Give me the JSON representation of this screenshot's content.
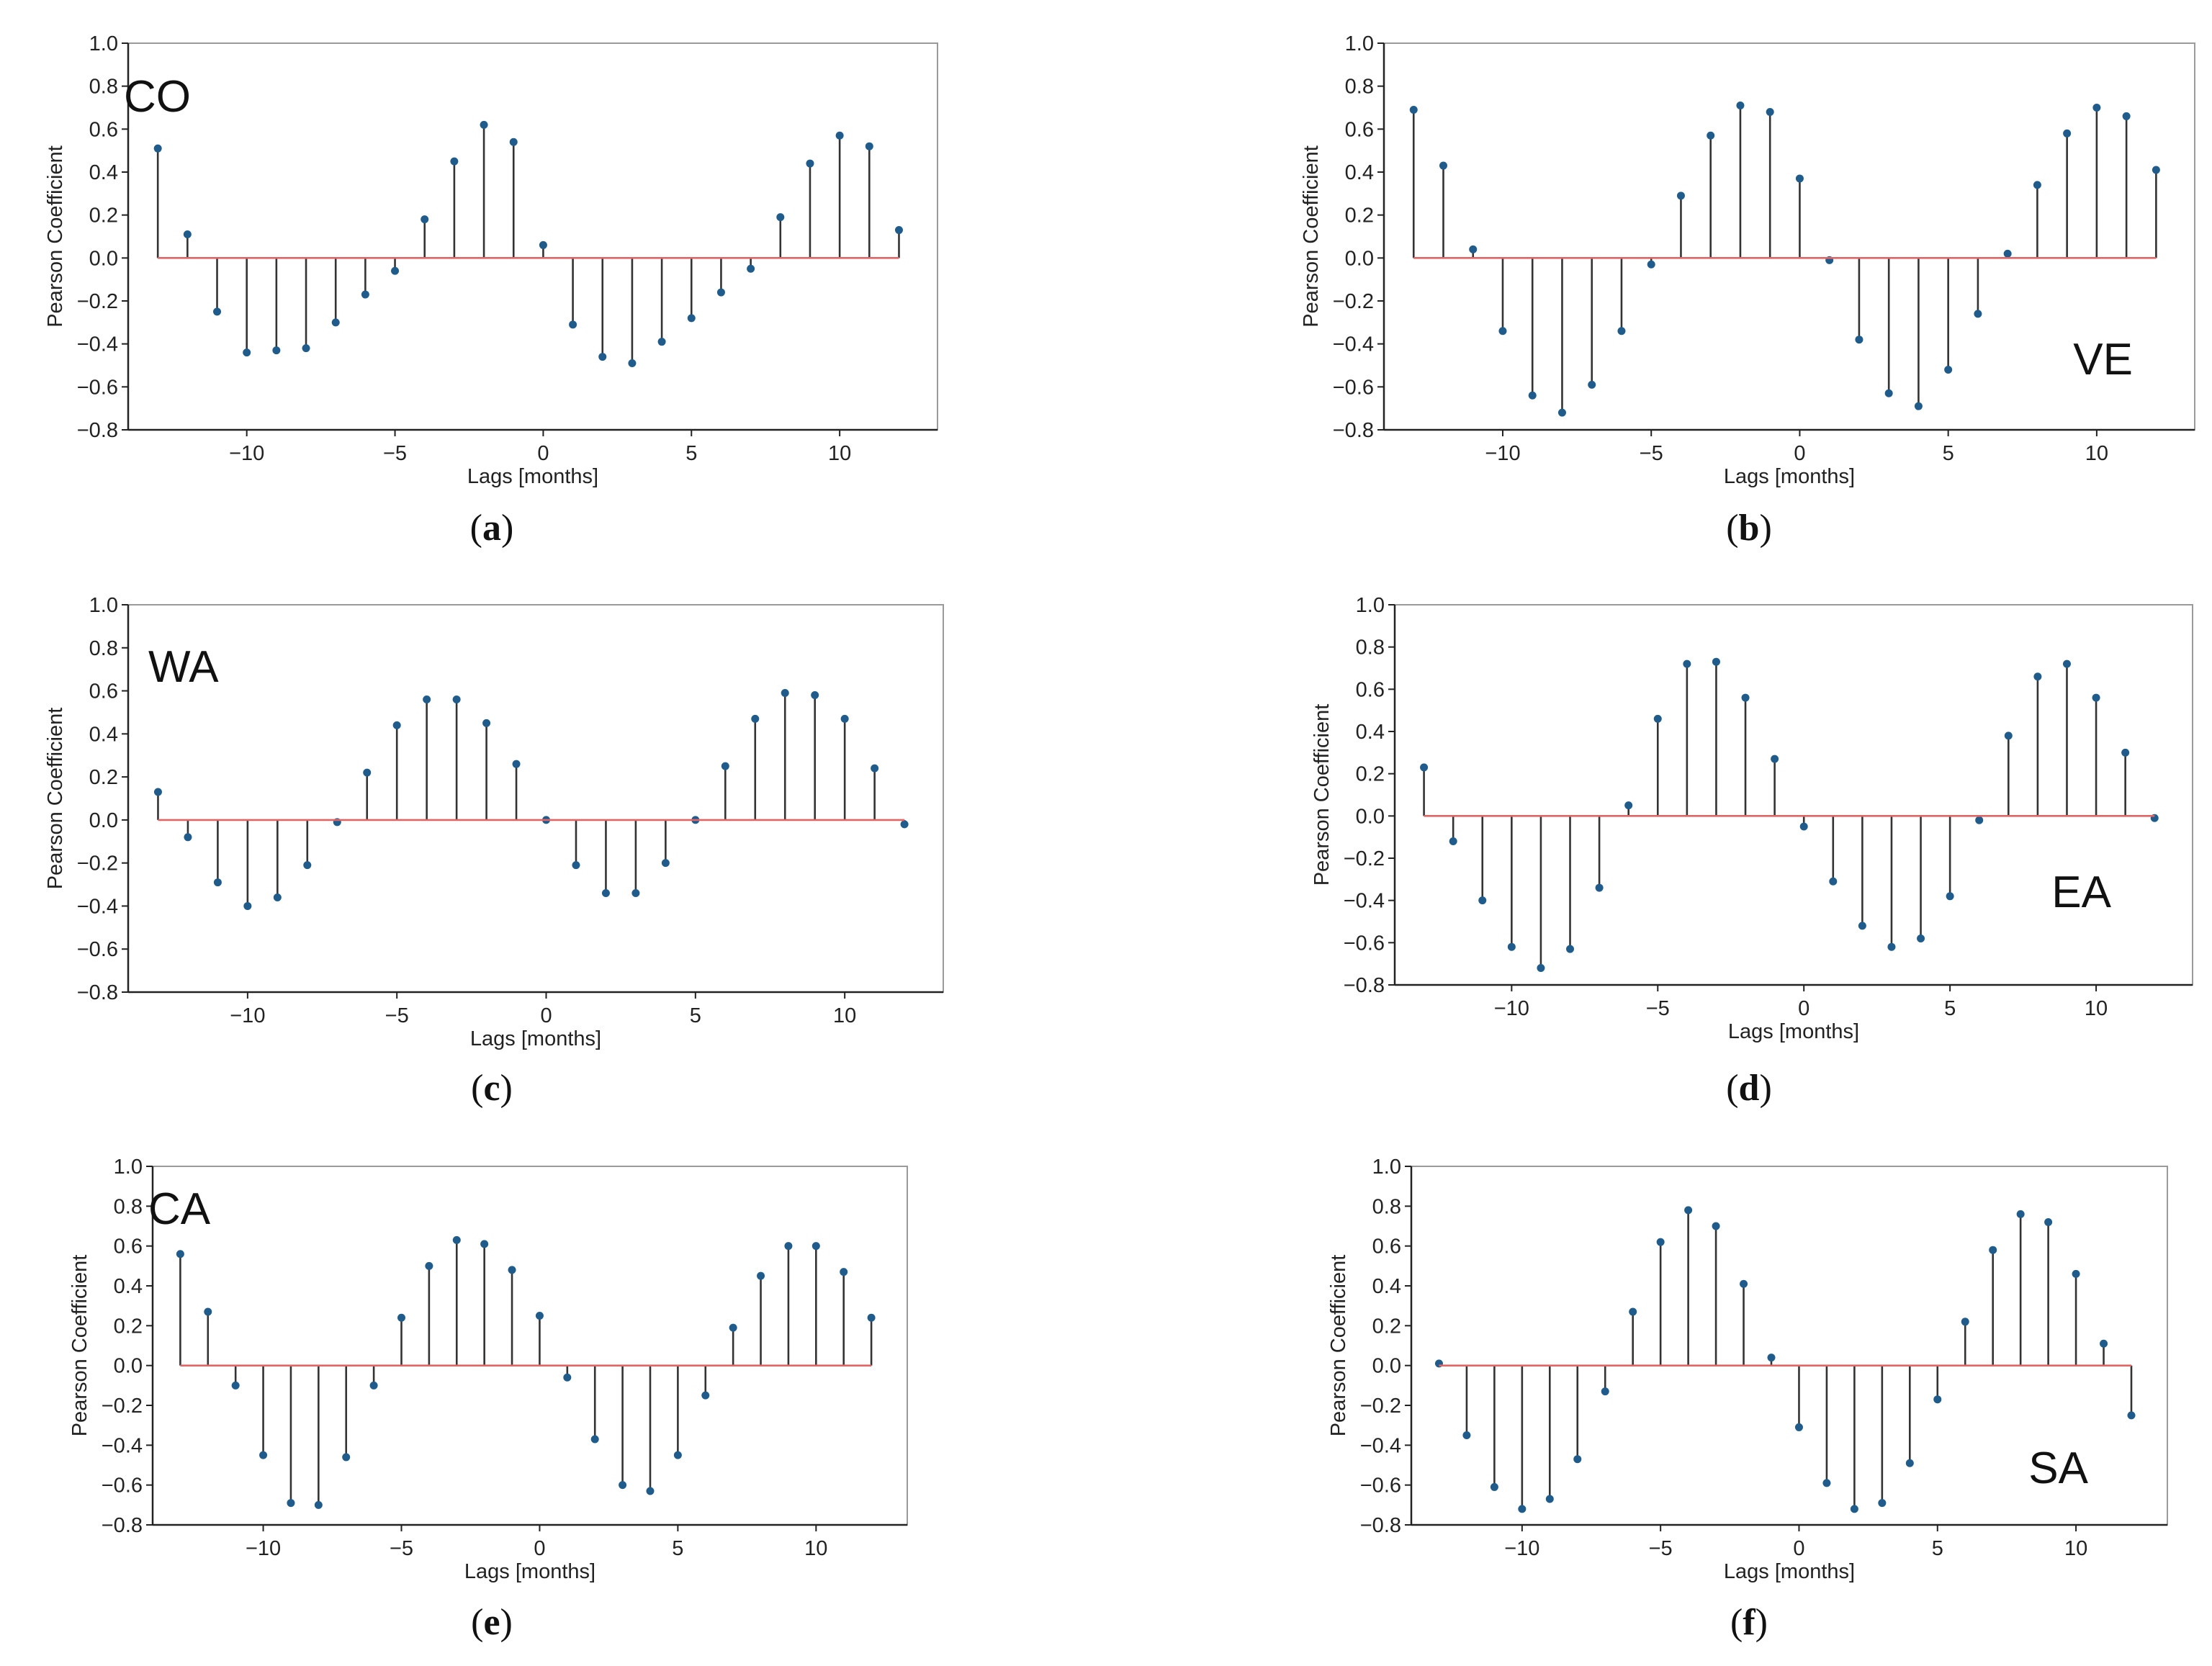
{
  "figure": {
    "panels": [
      {
        "letter": "a",
        "caption_open": "(",
        "caption_close": ")"
      },
      {
        "letter": "b",
        "caption_open": "(",
        "caption_close": ")"
      },
      {
        "letter": "c",
        "caption_open": "(",
        "caption_close": ")"
      },
      {
        "letter": "d",
        "caption_open": "(",
        "caption_close": ")"
      },
      {
        "letter": "e",
        "caption_open": "(",
        "caption_close": ")"
      },
      {
        "letter": "f",
        "caption_open": "(",
        "caption_close": ")"
      }
    ]
  },
  "colors": {
    "stem": "#333333",
    "marker": "#1f5c8c",
    "baseline": "#e06666",
    "axis": "#222222"
  },
  "chart_data": [
    {
      "type": "stem",
      "region_label": "CO",
      "xlabel": "Lags [months]",
      "ylabel": "Pearson Coefficient",
      "xlim": [
        -14,
        13.3
      ],
      "ylim": [
        -0.8,
        1.0
      ],
      "xticks": [
        -10,
        -5,
        0,
        5,
        10
      ],
      "xtick_labels": [
        "−10",
        "−5",
        "0",
        "5",
        "10"
      ],
      "yticks": [
        -0.8,
        -0.6,
        -0.4,
        -0.2,
        0.0,
        0.2,
        0.4,
        0.6,
        0.8,
        1.0
      ],
      "ytick_labels": [
        "−0.8",
        "−0.6",
        "−0.4",
        "−0.2",
        "0.0",
        "0.2",
        "0.4",
        "0.6",
        "0.8",
        "1.0"
      ],
      "x": [
        -13,
        -12,
        -11,
        -10,
        -9,
        -8,
        -7,
        -6,
        -5,
        -4,
        -3,
        -2,
        -1,
        0,
        1,
        2,
        3,
        4,
        5,
        6,
        7,
        8,
        9,
        10,
        11,
        12
      ],
      "values": [
        0.51,
        0.11,
        -0.25,
        -0.44,
        -0.43,
        -0.42,
        -0.3,
        -0.17,
        -0.06,
        0.18,
        0.45,
        0.62,
        0.54,
        0.06,
        -0.31,
        -0.46,
        -0.49,
        -0.39,
        -0.28,
        -0.16,
        -0.05,
        0.19,
        0.44,
        0.57,
        0.52,
        0.13
      ]
    },
    {
      "type": "stem",
      "region_label": "VE",
      "xlabel": "Lags [months]",
      "ylabel": "Pearson Coefficient",
      "xlim": [
        -14,
        13.3
      ],
      "ylim": [
        -0.8,
        1.0
      ],
      "xticks": [
        -10,
        -5,
        0,
        5,
        10
      ],
      "xtick_labels": [
        "−10",
        "−5",
        "0",
        "5",
        "10"
      ],
      "yticks": [
        -0.8,
        -0.6,
        -0.4,
        -0.2,
        0.0,
        0.2,
        0.4,
        0.6,
        0.8,
        1.0
      ],
      "ytick_labels": [
        "−0.8",
        "−0.6",
        "−0.4",
        "−0.2",
        "0.0",
        "0.2",
        "0.4",
        "0.6",
        "0.8",
        "1.0"
      ],
      "x": [
        -13,
        -12,
        -11,
        -10,
        -9,
        -8,
        -7,
        -6,
        -5,
        -4,
        -3,
        -2,
        -1,
        0,
        1,
        2,
        3,
        4,
        5,
        6,
        7,
        8,
        9,
        10,
        11,
        12
      ],
      "values": [
        0.69,
        0.43,
        0.04,
        -0.34,
        -0.64,
        -0.72,
        -0.59,
        -0.34,
        -0.03,
        0.29,
        0.57,
        0.71,
        0.68,
        0.37,
        -0.01,
        -0.38,
        -0.63,
        -0.69,
        -0.52,
        -0.26,
        0.02,
        0.34,
        0.58,
        0.7,
        0.66,
        0.41
      ]
    },
    {
      "type": "stem",
      "region_label": "WA",
      "xlabel": "Lags [months]",
      "ylabel": "Pearson Coefficient",
      "xlim": [
        -14,
        13.3
      ],
      "ylim": [
        -0.8,
        1.0
      ],
      "xticks": [
        -10,
        -5,
        0,
        5,
        10
      ],
      "xtick_labels": [
        "−10",
        "−5",
        "0",
        "5",
        "10"
      ],
      "yticks": [
        -0.8,
        -0.6,
        -0.4,
        -0.2,
        0.0,
        0.2,
        0.4,
        0.6,
        0.8,
        1.0
      ],
      "ytick_labels": [
        "−0.8",
        "−0.6",
        "−0.4",
        "−0.2",
        "0.0",
        "0.2",
        "0.4",
        "0.6",
        "0.8",
        "1.0"
      ],
      "x": [
        -13,
        -12,
        -11,
        -10,
        -9,
        -8,
        -7,
        -6,
        -5,
        -4,
        -3,
        -2,
        -1,
        0,
        1,
        2,
        3,
        4,
        5,
        6,
        7,
        8,
        9,
        10,
        11,
        12
      ],
      "values": [
        0.13,
        -0.08,
        -0.29,
        -0.4,
        -0.36,
        -0.21,
        -0.01,
        0.22,
        0.44,
        0.56,
        0.56,
        0.45,
        0.26,
        0.0,
        -0.21,
        -0.34,
        -0.34,
        -0.2,
        0.0,
        0.25,
        0.47,
        0.59,
        0.58,
        0.47,
        0.24,
        -0.02
      ]
    },
    {
      "type": "stem",
      "region_label": "EA",
      "xlabel": "Lags [months]",
      "ylabel": "Pearson Coefficient",
      "xlim": [
        -14,
        13.3
      ],
      "ylim": [
        -0.8,
        1.0
      ],
      "xticks": [
        -10,
        -5,
        0,
        5,
        10
      ],
      "xtick_labels": [
        "−10",
        "−5",
        "0",
        "5",
        "10"
      ],
      "yticks": [
        -0.8,
        -0.6,
        -0.4,
        -0.2,
        0.0,
        0.2,
        0.4,
        0.6,
        0.8,
        1.0
      ],
      "ytick_labels": [
        "−0.8",
        "−0.6",
        "−0.4",
        "−0.2",
        "0.0",
        "0.2",
        "0.4",
        "0.6",
        "0.8",
        "1.0"
      ],
      "x": [
        -13,
        -12,
        -11,
        -10,
        -9,
        -8,
        -7,
        -6,
        -5,
        -4,
        -3,
        -2,
        -1,
        0,
        1,
        2,
        3,
        4,
        5,
        6,
        7,
        8,
        9,
        10,
        11,
        12
      ],
      "values": [
        0.23,
        -0.12,
        -0.4,
        -0.62,
        -0.72,
        -0.63,
        -0.34,
        0.05,
        0.46,
        0.72,
        0.73,
        0.56,
        0.27,
        -0.05,
        -0.31,
        -0.52,
        -0.62,
        -0.58,
        -0.38,
        -0.02,
        0.38,
        0.66,
        0.72,
        0.56,
        0.3,
        -0.01
      ]
    },
    {
      "type": "stem",
      "region_label": "CA",
      "xlabel": "Lags [months]",
      "ylabel": "Pearson Coefficient",
      "xlim": [
        -14,
        13.3
      ],
      "ylim": [
        -0.8,
        1.0
      ],
      "xticks": [
        -10,
        -5,
        0,
        5,
        10
      ],
      "xtick_labels": [
        "−10",
        "−5",
        "0",
        "5",
        "10"
      ],
      "yticks": [
        -0.8,
        -0.6,
        -0.4,
        -0.2,
        0.0,
        0.2,
        0.4,
        0.6,
        0.8,
        1.0
      ],
      "ytick_labels": [
        "−0.8",
        "−0.6",
        "−0.4",
        "−0.2",
        "0.0",
        "0.2",
        "0.4",
        "0.6",
        "0.8",
        "1.0"
      ],
      "x": [
        -13,
        -12,
        -11,
        -10,
        -9,
        -8,
        -7,
        -6,
        -5,
        -4,
        -3,
        -2,
        -1,
        0,
        1,
        2,
        3,
        4,
        5,
        6,
        7,
        8,
        9,
        10,
        11,
        12
      ],
      "values": [
        0.56,
        0.27,
        -0.1,
        -0.45,
        -0.69,
        -0.7,
        -0.46,
        -0.1,
        0.24,
        0.5,
        0.63,
        0.61,
        0.48,
        0.25,
        -0.06,
        -0.37,
        -0.6,
        -0.63,
        -0.45,
        -0.15,
        0.19,
        0.45,
        0.6,
        0.6,
        0.47,
        0.24
      ]
    },
    {
      "type": "stem",
      "region_label": "SA",
      "xlabel": "Lags [months]",
      "ylabel": "Pearson Coefficient",
      "xlim": [
        -14,
        13.3
      ],
      "ylim": [
        -0.8,
        1.0
      ],
      "xticks": [
        -10,
        -5,
        0,
        5,
        10
      ],
      "xtick_labels": [
        "−10",
        "−5",
        "0",
        "5",
        "10"
      ],
      "yticks": [
        -0.8,
        -0.6,
        -0.4,
        -0.2,
        0.0,
        0.2,
        0.4,
        0.6,
        0.8,
        1.0
      ],
      "ytick_labels": [
        "−0.8",
        "−0.6",
        "−0.4",
        "−0.2",
        "0.0",
        "0.2",
        "0.4",
        "0.6",
        "0.8",
        "1.0"
      ],
      "x": [
        -13,
        -12,
        -11,
        -10,
        -9,
        -8,
        -7,
        -6,
        -5,
        -4,
        -3,
        -2,
        -1,
        0,
        1,
        2,
        3,
        4,
        5,
        6,
        7,
        8,
        9,
        10,
        11,
        12
      ],
      "values": [
        0.01,
        -0.35,
        -0.61,
        -0.72,
        -0.67,
        -0.47,
        -0.13,
        0.27,
        0.62,
        0.78,
        0.7,
        0.41,
        0.04,
        -0.31,
        -0.59,
        -0.72,
        -0.69,
        -0.49,
        -0.17,
        0.22,
        0.58,
        0.76,
        0.72,
        0.46,
        0.11,
        -0.25
      ]
    }
  ]
}
